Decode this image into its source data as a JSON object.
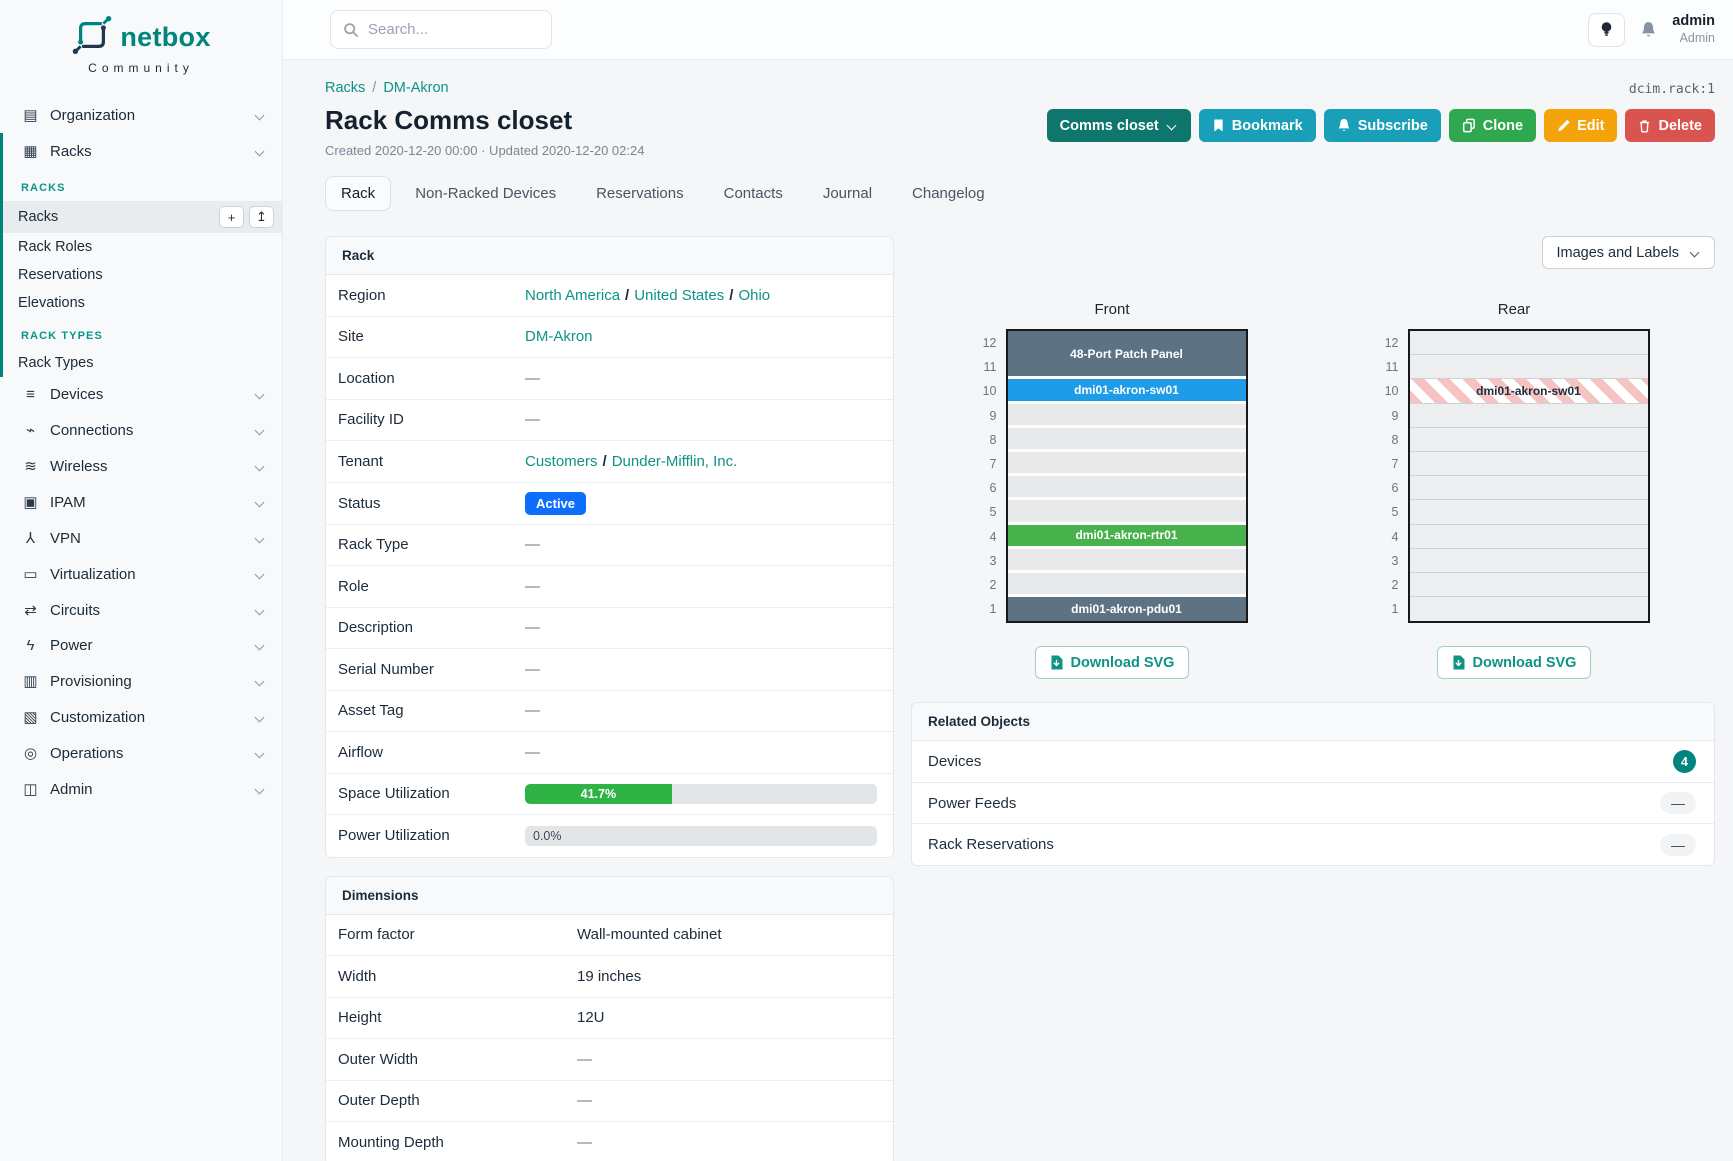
{
  "brand": {
    "name": "netbox",
    "tagline": "Community"
  },
  "topbar": {
    "search_placeholder": "Search...",
    "user_name": "admin",
    "user_role": "Admin"
  },
  "sidebar": {
    "top_items": [
      {
        "glyph": "▤",
        "label": "Organization"
      },
      {
        "glyph": "▦",
        "label": "Racks"
      }
    ],
    "racks_section_label": "RACKS",
    "racks_items": {
      "racks": "Racks",
      "rack_roles": "Rack Roles",
      "reservations": "Reservations",
      "elevations": "Elevations"
    },
    "racks_buttons": {
      "add": "+",
      "import": "↥"
    },
    "rack_types_section_label": "RACK TYPES",
    "rack_types_item": "Rack Types",
    "main_items": [
      {
        "glyph": "≡",
        "label": "Devices"
      },
      {
        "glyph": "⌁",
        "label": "Connections"
      },
      {
        "glyph": "≋",
        "label": "Wireless"
      },
      {
        "glyph": "▣",
        "label": "IPAM"
      },
      {
        "glyph": "⅄",
        "label": "VPN"
      },
      {
        "glyph": "▭",
        "label": "Virtualization"
      },
      {
        "glyph": "⇄",
        "label": "Circuits"
      },
      {
        "glyph": "ϟ",
        "label": "Power"
      },
      {
        "glyph": "▥",
        "label": "Provisioning"
      },
      {
        "glyph": "▧",
        "label": "Customization"
      },
      {
        "glyph": "◎",
        "label": "Operations"
      },
      {
        "glyph": "◫",
        "label": "Admin"
      }
    ]
  },
  "header": {
    "breadcrumb": {
      "racks": "Racks",
      "site": "DM-Akron"
    },
    "object_id": "dcim.rack:1",
    "title": "Rack Comms closet",
    "meta": "Created 2020-12-20 00:00 · Updated 2020-12-20 02:24",
    "actions": {
      "status_dropdown": "Comms closet",
      "bookmark": "Bookmark",
      "subscribe": "Subscribe",
      "clone": "Clone",
      "edit": "Edit",
      "delete": "Delete"
    }
  },
  "tabs": [
    {
      "label": "Rack",
      "cls": "active"
    },
    {
      "label": "Non-Racked Devices",
      "cls": ""
    },
    {
      "label": "Reservations",
      "cls": ""
    },
    {
      "label": "Contacts",
      "cls": ""
    },
    {
      "label": "Journal",
      "cls": ""
    },
    {
      "label": "Changelog",
      "cls": ""
    }
  ],
  "rack_panel": {
    "title": "Rack",
    "region": {
      "label": "Region",
      "links": [
        "North America",
        "United States",
        "Ohio"
      ]
    },
    "site": {
      "label": "Site",
      "link": "DM-Akron"
    },
    "location": {
      "label": "Location",
      "value": "—"
    },
    "facility": {
      "label": "Facility ID",
      "value": "—"
    },
    "tenant": {
      "label": "Tenant",
      "links": [
        "Customers",
        "Dunder-Mifflin, Inc."
      ]
    },
    "status": {
      "label": "Status",
      "badge": "Active"
    },
    "rack_type": {
      "label": "Rack Type",
      "value": "—"
    },
    "role": {
      "label": "Role",
      "value": "—"
    },
    "description": {
      "label": "Description",
      "value": "—"
    },
    "serial": {
      "label": "Serial Number",
      "value": "—"
    },
    "asset_tag": {
      "label": "Asset Tag",
      "value": "—"
    },
    "airflow": {
      "label": "Airflow",
      "value": "—"
    },
    "space": {
      "label": "Space Utilization",
      "pct_label": "41.7%",
      "pct": 41.7
    },
    "power": {
      "label": "Power Utilization",
      "pct_label": "0.0%",
      "pct": 0
    }
  },
  "dimensions_panel": {
    "title": "Dimensions",
    "rows": [
      {
        "label": "Form factor",
        "value": "Wall-mounted cabinet",
        "vclass": ""
      },
      {
        "label": "Width",
        "value": "19 inches",
        "vclass": ""
      },
      {
        "label": "Height",
        "value": "12U",
        "vclass": ""
      },
      {
        "label": "Outer Width",
        "value": "—",
        "vclass": "dash"
      },
      {
        "label": "Outer Depth",
        "value": "—",
        "vclass": "dash"
      },
      {
        "label": "Mounting Depth",
        "value": "—",
        "vclass": "dash"
      }
    ]
  },
  "elevations": {
    "toolbar_label": "Images and Labels",
    "download_label": "Download SVG",
    "unit_numbers": [
      12,
      11,
      10,
      9,
      8,
      7,
      6,
      5,
      4,
      3,
      2,
      1
    ],
    "front": {
      "title": "Front",
      "units": [
        {
          "span": 2,
          "style": "device-slate",
          "label": "48-Port Patch Panel"
        },
        {
          "span": 1,
          "style": "device-blue",
          "label": "dmi01-akron-sw01"
        },
        {
          "span": 1,
          "style": "empty"
        },
        {
          "span": 1,
          "style": "empty"
        },
        {
          "span": 1,
          "style": "empty"
        },
        {
          "span": 1,
          "style": "empty"
        },
        {
          "span": 1,
          "style": "empty"
        },
        {
          "span": 1,
          "style": "device-green",
          "label": "dmi01-akron-rtr01"
        },
        {
          "span": 1,
          "style": "empty"
        },
        {
          "span": 1,
          "style": "empty"
        },
        {
          "span": 1,
          "style": "device-slate",
          "label": "dmi01-akron-pdu01"
        }
      ]
    },
    "rear": {
      "title": "Rear",
      "units": [
        {
          "span": 1,
          "style": "empty"
        },
        {
          "span": 1,
          "style": "empty"
        },
        {
          "span": 1,
          "style": "device-striped",
          "label": "dmi01-akron-sw01"
        },
        {
          "span": 1,
          "style": "empty"
        },
        {
          "span": 1,
          "style": "empty"
        },
        {
          "span": 1,
          "style": "empty"
        },
        {
          "span": 1,
          "style": "empty"
        },
        {
          "span": 1,
          "style": "empty"
        },
        {
          "span": 1,
          "style": "empty"
        },
        {
          "span": 1,
          "style": "empty"
        },
        {
          "span": 1,
          "style": "empty"
        },
        {
          "span": 1,
          "style": "empty"
        }
      ]
    }
  },
  "related": {
    "title": "Related Objects",
    "devices_label": "Devices",
    "devices_count": "4",
    "power_feeds_label": "Power Feeds",
    "power_feeds_value": "—",
    "rack_reservations_label": "Rack Reservations",
    "rack_reservations_value": "—"
  },
  "colors": {
    "brand_teal": "#00857e",
    "link_teal": "#0e9384",
    "status_active_blue": "#0d6efd",
    "progress_green": "#2fb344"
  }
}
